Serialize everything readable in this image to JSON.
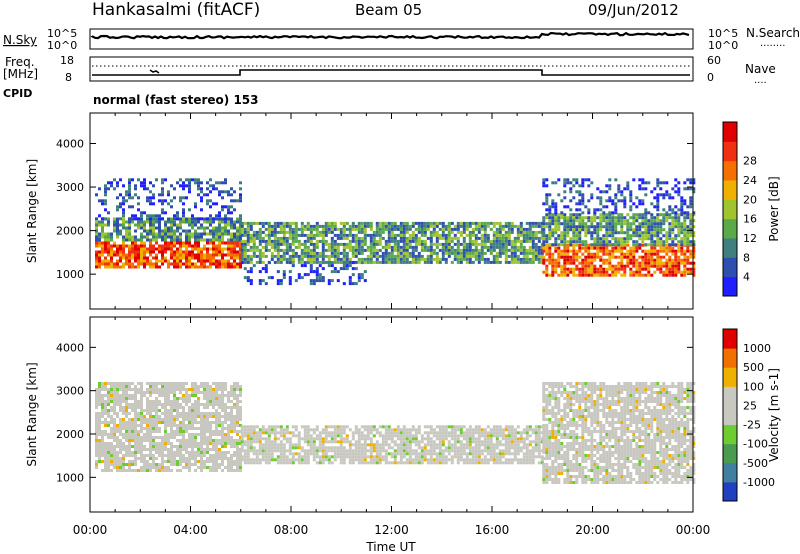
{
  "header": {
    "station": "Hankasalmi (fitACF)",
    "beam": "Beam 05",
    "date": "09/Jun/2012"
  },
  "strip_labels": {
    "nsky": "N.Sky",
    "nsearch": "N.Search",
    "nsearch_dots": "........",
    "freq": "Freq.",
    "freq_unit": "[MHz]",
    "cpid": "CPID",
    "nave": "Nave",
    "nave_dots": "....",
    "cpid_text": "normal (fast stereo) 153",
    "nsky_top": "10^5",
    "nsky_bot": "10^0",
    "nsearch_top": "10^5",
    "nsearch_bot": "10^0",
    "freq_top": "18",
    "freq_bot": "8",
    "nave_top": "60",
    "nave_bot": "0"
  },
  "chart_data": [
    {
      "type": "heatmap",
      "name": "power",
      "ylabel": "Slant Range [km]",
      "y_ticks": [
        "1000",
        "2000",
        "3000",
        "4000"
      ],
      "ylim": [
        200,
        4700
      ],
      "xlim_hours": [
        0,
        24
      ],
      "colorbar_label": "Power [dB]",
      "colorbar_ticks": [
        "4",
        "8",
        "12",
        "16",
        "20",
        "24",
        "28"
      ],
      "colorscale": [
        "#1f1fff",
        "#2f4fb0",
        "#3f7f7f",
        "#5aaa4a",
        "#9fc430",
        "#f0b000",
        "#f57000",
        "#f03010",
        "#e00000"
      ],
      "echo_bands": [
        {
          "t0": 0.2,
          "t1": 6.0,
          "r0": 1150,
          "r1": 1750,
          "level": "high"
        },
        {
          "t0": 0.2,
          "t1": 6.0,
          "r0": 1750,
          "r1": 2300,
          "level": "mid"
        },
        {
          "t0": 0.2,
          "t1": 6.0,
          "r0": 2300,
          "r1": 3200,
          "level": "low"
        },
        {
          "t0": 6.0,
          "t1": 18.0,
          "r0": 1300,
          "r1": 2200,
          "level": "mid"
        },
        {
          "t0": 6.0,
          "t1": 11.0,
          "r0": 800,
          "r1": 1300,
          "level": "low"
        },
        {
          "t0": 18.0,
          "t1": 24.0,
          "r0": 1000,
          "r1": 1700,
          "level": "high"
        },
        {
          "t0": 18.0,
          "t1": 24.0,
          "r0": 1700,
          "r1": 2400,
          "level": "mid"
        },
        {
          "t0": 18.0,
          "t1": 24.0,
          "r0": 2400,
          "r1": 3200,
          "level": "low"
        }
      ]
    },
    {
      "type": "heatmap",
      "name": "velocity",
      "ylabel": "Slant Range [km]",
      "y_ticks": [
        "1000",
        "2000",
        "3000",
        "4000"
      ],
      "ylim": [
        200,
        4700
      ],
      "xlim_hours": [
        0,
        24
      ],
      "colorbar_label": "Velocity [m s-1]",
      "colorbar_ticks": [
        "1000",
        "500",
        "100",
        "25",
        "-25",
        "-100",
        "-500",
        "-1000"
      ],
      "colorscale": [
        "#2040c0",
        "#3f7fa0",
        "#4a9a50",
        "#6ccc30",
        "#c8c8c0",
        "#c8c8c0",
        "#f0b000",
        "#f07000",
        "#e00000"
      ],
      "echo_bands": [
        {
          "t0": 0.2,
          "t1": 6.0,
          "r0": 1150,
          "r1": 3200,
          "level": "grey"
        },
        {
          "t0": 6.0,
          "t1": 18.0,
          "r0": 1300,
          "r1": 2200,
          "level": "grey"
        },
        {
          "t0": 18.0,
          "t1": 24.0,
          "r0": 900,
          "r1": 3200,
          "level": "grey"
        }
      ]
    }
  ],
  "x_axis": {
    "ticks": [
      "00:00",
      "04:00",
      "08:00",
      "12:00",
      "16:00",
      "20:00",
      "00:00"
    ],
    "label": "Time UT"
  }
}
